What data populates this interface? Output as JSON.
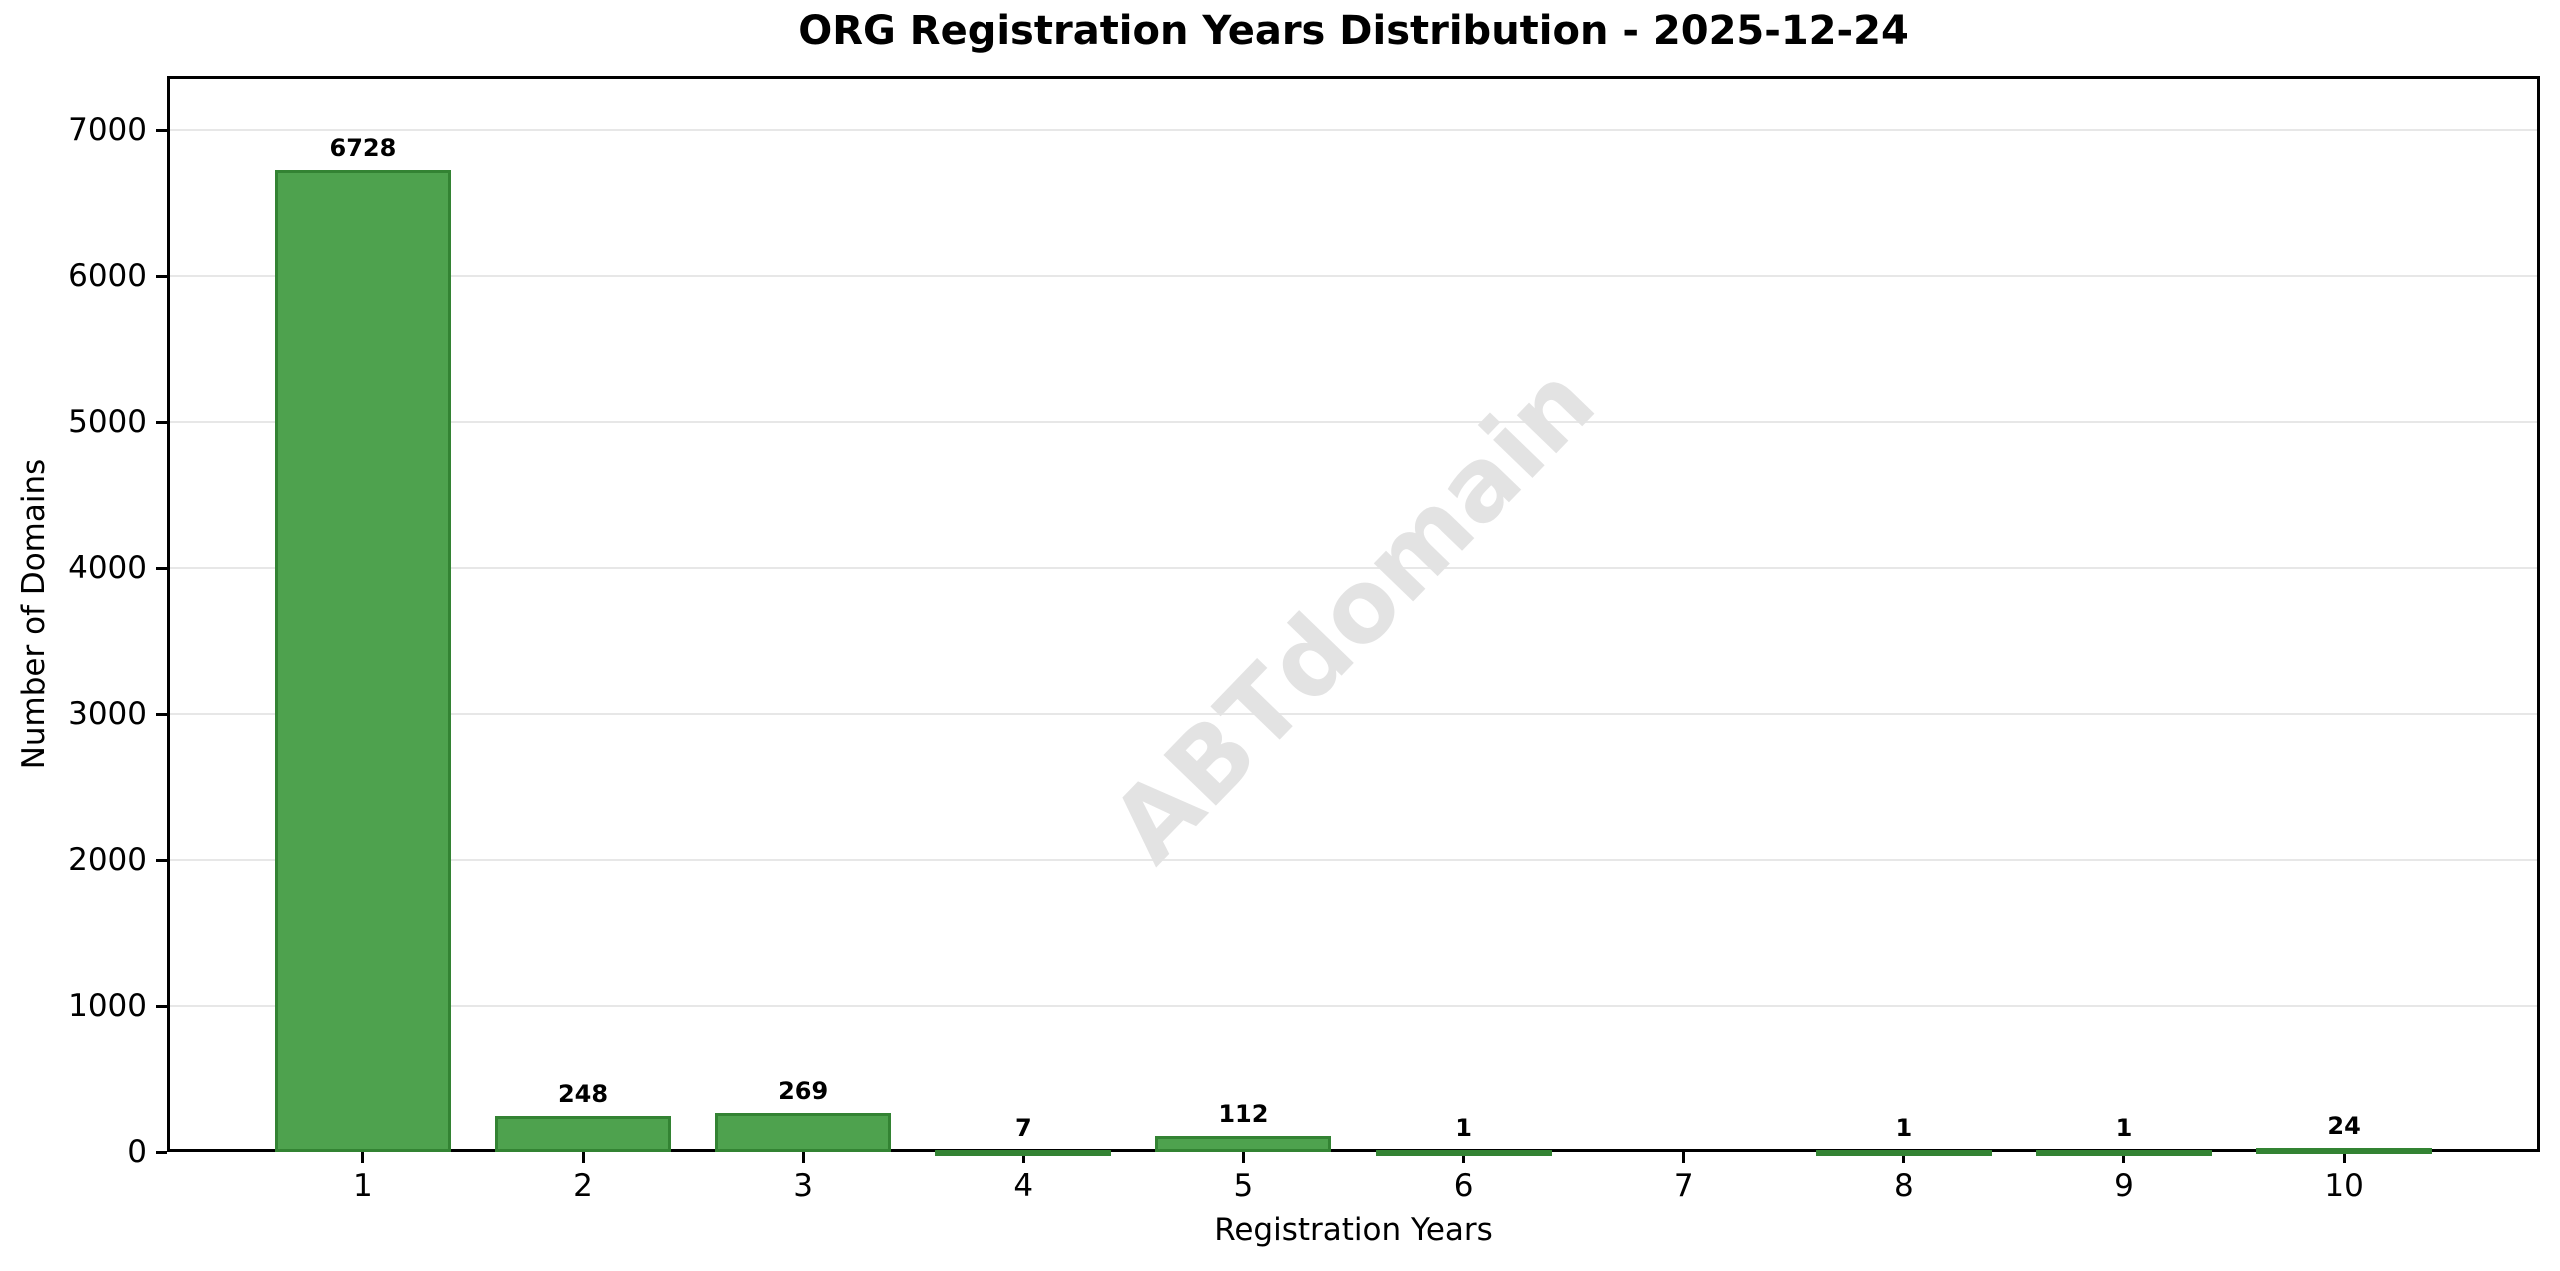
{
  "chart_data": {
    "type": "bar",
    "title": "ORG Registration Years Distribution - 2025-12-24",
    "xlabel": "Registration Years",
    "ylabel": "Number of Domains",
    "watermark": "ABTdomain",
    "categories": [
      1,
      2,
      3,
      4,
      5,
      6,
      7,
      8,
      9,
      10
    ],
    "values": [
      6728,
      248,
      269,
      7,
      112,
      1,
      null,
      1,
      1,
      24
    ],
    "bar_value_labels": [
      "6728",
      "248",
      "269",
      "7",
      "112",
      "1",
      "",
      "1",
      "1",
      "24"
    ],
    "xtick_labels": [
      "1",
      "2",
      "3",
      "4",
      "5",
      "6",
      "7",
      "8",
      "9",
      "10"
    ],
    "yticks": [
      0,
      1000,
      2000,
      3000,
      4000,
      5000,
      6000,
      7000
    ],
    "ylim": [
      0,
      7370
    ],
    "xlim": [
      0.11,
      10.89
    ],
    "bar_width_units": 0.8,
    "grid": "horizontal",
    "legend_position": "none",
    "colors": {
      "bar_fill": "#4ea24e",
      "bar_edge": "#338333",
      "grid": "#e7e7e7",
      "spine": "#000000",
      "watermark": "#e3e3e3",
      "background": "#ffffff",
      "text": "#000000"
    }
  }
}
